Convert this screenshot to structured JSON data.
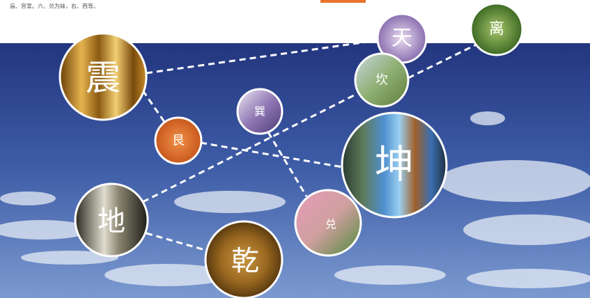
{
  "caption": "庙、宫室。六、兑为妹，右、西等。",
  "nodes": [
    "震",
    "天",
    "离",
    "坎",
    "巽",
    "艮",
    "坤",
    "地",
    "兑",
    "乾"
  ]
}
